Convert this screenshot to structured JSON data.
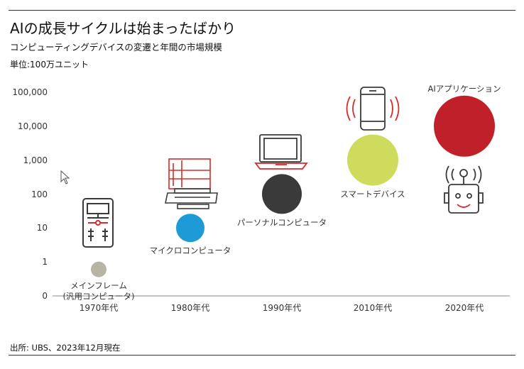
{
  "title": "AIの成長サイクルは始まったばかり",
  "subtitle": "コンピューティングデバイスの変遷と年間の市場規模",
  "unit_label": "単位:100万ユニット",
  "source": "出所: UBS、2023年12月現在",
  "icons": [
    "desktop-tower-icon",
    "retro-computer-icon",
    "laptop-icon",
    "smartphone-icon",
    "robot-icon"
  ],
  "colors": {
    "mainframe": "#b8b4a4",
    "micro": "#1e9ad6",
    "pc": "#3a3a3a",
    "smart": "#cfdb5c",
    "ai": "#c0202a",
    "accent_red": "#d42c2c",
    "axis": "#888888"
  },
  "chart_data": {
    "type": "scatter",
    "y_scale": "log",
    "y_ticks": [
      "100,000",
      "10,000",
      "1,000",
      "100",
      "10",
      "1",
      "0"
    ],
    "categories": [
      "1970年代",
      "1980年代",
      "1990年代",
      "2010年代",
      "2020年代"
    ],
    "points": [
      {
        "category": "1970年代",
        "value": 0.6,
        "label_lines": [
          "メインフレーム",
          "(汎用コンピュータ)"
        ],
        "color": "#b8b4a4"
      },
      {
        "category": "1980年代",
        "value": 10,
        "label_lines": [
          "マイクロコンピュータ"
        ],
        "color": "#1e9ad6"
      },
      {
        "category": "1990年代",
        "value": 100,
        "label_lines": [
          "パーソナルコンピュータ"
        ],
        "color": "#3a3a3a"
      },
      {
        "category": "2010年代",
        "value": 1000,
        "label_lines": [
          "スマートデバイス"
        ],
        "color": "#cfdb5c"
      },
      {
        "category": "2020年代",
        "value": 10000,
        "label_lines": [
          "AIアプリケーション"
        ],
        "color": "#c0202a"
      }
    ]
  }
}
